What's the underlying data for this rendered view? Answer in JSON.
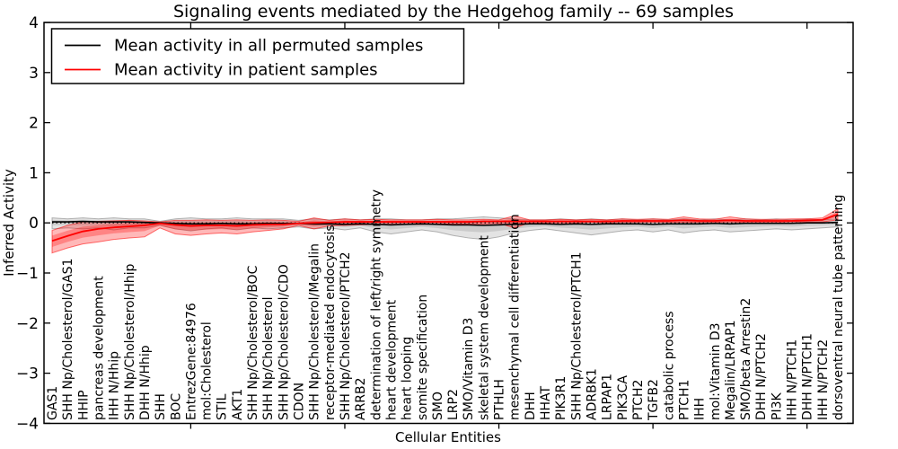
{
  "title": "Signaling events mediated by the Hedgehog family -- 69 samples",
  "axes": {
    "xlabel": "Cellular Entities",
    "ylabel": "Inferred Activity",
    "ylim": [
      -4,
      4
    ],
    "yticklabels": [
      "4",
      "3",
      "2",
      "1",
      "0",
      "−1",
      "−2",
      "−3",
      "−4"
    ],
    "yticks": [
      4,
      3,
      2,
      1,
      0,
      -1,
      -2,
      -3,
      -4
    ]
  },
  "legend": {
    "position": "upper left",
    "entries": [
      {
        "label": "Mean activity in all permuted samples",
        "color": "#000000"
      },
      {
        "label": "Mean activity in patient samples",
        "color": "#ff0000"
      }
    ]
  },
  "colors": {
    "patient": "#ff0000",
    "permuted": "#000000",
    "zero_line": "#000000",
    "patient_band": "rgba(255,0,0,0.28)",
    "patient_band_edge": "rgba(255,0,0,0.55)",
    "permuted_band": "rgba(90,90,90,0.17)",
    "permuted_band_edge": "rgba(120,120,120,0.55)"
  },
  "chart_data": {
    "type": "line",
    "title": "Signaling events mediated by the Hedgehog family -- 69 samples",
    "xlabel": "Cellular Entities",
    "ylabel": "Inferred Activity",
    "ylim": [
      -4,
      4
    ],
    "grid": false,
    "legend_position": "upper left",
    "zero_line": true,
    "categories": [
      "GAS1",
      "SHH Np/Cholesterol/GAS1",
      "HHIP",
      "pancreas development",
      "IHH N/Hhip",
      "SHH Np/Cholesterol/Hhip",
      "DHH N/Hhip",
      "SHH",
      "BOC",
      "EntrezGene:84976",
      "mol:Cholesterol",
      "STIL",
      "AKT1",
      "SHH Np/Cholesterol/BOC",
      "SHH Np/Cholesterol",
      "SHH Np/Cholesterol/CDO",
      "CDON",
      "SHH Np/Cholesterol/Megalin",
      "receptor-mediated endocytosis",
      "SHH Np/Cholesterol/PTCH2",
      "ARRB2",
      "determination of left/right symmetry",
      "heart development",
      "heart looping",
      "somite specification",
      "SMO",
      "LRP2",
      "SMO/Vitamin D3",
      "skeletal system development",
      "PTHLH",
      "mesenchymal cell differentiation",
      "DHH",
      "HHAT",
      "PIK3R1",
      "SHH Np/Cholesterol/PTCH1",
      "ADRBK1",
      "LRPAP1",
      "PIK3CA",
      "PTCH2",
      "TGFB2",
      "catabolic process",
      "PTCH1",
      "IHH",
      "mol:Vitamin D3",
      "Megalin/LRPAP1",
      "SMO/beta Arrestin2",
      "DHH N/PTCH2",
      "PI3K",
      "IHH N/PTCH1",
      "DHH N/PTCH1",
      "IHH N/PTCH2",
      "dorsoventral neural tube patterning"
    ],
    "series": [
      {
        "name": "Mean activity in all permuted samples",
        "color": "#000000",
        "values": [
          0.02,
          0.02,
          0.03,
          0.02,
          0.02,
          0.02,
          0.01,
          0.0,
          -0.01,
          -0.02,
          -0.02,
          -0.01,
          -0.02,
          -0.02,
          -0.01,
          -0.01,
          -0.01,
          -0.02,
          -0.02,
          -0.03,
          -0.02,
          -0.03,
          -0.04,
          -0.03,
          -0.02,
          -0.03,
          -0.04,
          -0.04,
          -0.05,
          -0.04,
          -0.03,
          -0.02,
          -0.02,
          -0.03,
          -0.02,
          -0.03,
          -0.02,
          -0.02,
          -0.02,
          -0.03,
          -0.02,
          -0.02,
          -0.02,
          -0.01,
          -0.02,
          -0.01,
          -0.01,
          -0.01,
          -0.01,
          0.0,
          0.0,
          0.01
        ]
      },
      {
        "name": "Mean activity in patient samples",
        "color": "#ff0000",
        "values": [
          -0.36,
          -0.26,
          -0.17,
          -0.12,
          -0.09,
          -0.07,
          -0.05,
          -0.01,
          -0.04,
          -0.06,
          -0.05,
          -0.05,
          -0.06,
          -0.04,
          -0.03,
          -0.03,
          -0.01,
          0.0,
          0.01,
          0.02,
          0.02,
          0.02,
          0.02,
          0.02,
          0.02,
          0.02,
          0.02,
          0.02,
          0.03,
          0.03,
          0.03,
          0.03,
          0.03,
          0.03,
          0.03,
          0.03,
          0.03,
          0.04,
          0.04,
          0.04,
          0.04,
          0.05,
          0.04,
          0.04,
          0.05,
          0.04,
          0.04,
          0.04,
          0.04,
          0.05,
          0.06,
          0.17
        ]
      }
    ],
    "bands": [
      {
        "name": "permuted sample range",
        "upper": [
          0.1,
          0.08,
          0.1,
          0.08,
          0.1,
          0.08,
          0.08,
          0.03,
          0.08,
          0.1,
          0.08,
          0.08,
          0.1,
          0.08,
          0.08,
          0.08,
          0.05,
          0.08,
          0.06,
          0.08,
          0.06,
          0.08,
          0.08,
          0.06,
          0.06,
          0.08,
          0.08,
          0.1,
          0.12,
          0.1,
          0.08,
          0.06,
          0.06,
          0.08,
          0.06,
          0.08,
          0.06,
          0.08,
          0.06,
          0.08,
          0.06,
          0.08,
          0.06,
          0.08,
          0.06,
          0.08,
          0.06,
          0.08,
          0.06,
          0.08,
          0.06,
          0.08
        ],
        "lower": [
          -0.12,
          -0.1,
          -0.12,
          -0.1,
          -0.14,
          -0.1,
          -0.1,
          -0.05,
          -0.12,
          -0.16,
          -0.12,
          -0.1,
          -0.14,
          -0.1,
          -0.12,
          -0.1,
          -0.08,
          -0.12,
          -0.1,
          -0.14,
          -0.1,
          -0.18,
          -0.22,
          -0.18,
          -0.14,
          -0.18,
          -0.25,
          -0.3,
          -0.33,
          -0.28,
          -0.2,
          -0.15,
          -0.12,
          -0.16,
          -0.2,
          -0.24,
          -0.2,
          -0.16,
          -0.14,
          -0.18,
          -0.14,
          -0.2,
          -0.16,
          -0.14,
          -0.18,
          -0.16,
          -0.14,
          -0.12,
          -0.14,
          -0.12,
          -0.1,
          -0.08
        ]
      },
      {
        "name": "patient sample range",
        "upper": [
          -0.15,
          -0.05,
          0.02,
          0.03,
          0.04,
          0.05,
          0.04,
          0.02,
          0.05,
          0.05,
          0.06,
          0.05,
          0.06,
          0.05,
          0.06,
          0.05,
          0.03,
          0.1,
          0.05,
          0.08,
          0.06,
          0.07,
          0.06,
          0.06,
          0.06,
          0.07,
          0.06,
          0.06,
          0.07,
          0.06,
          0.14,
          0.06,
          0.06,
          0.07,
          0.06,
          0.07,
          0.06,
          0.08,
          0.07,
          0.08,
          0.07,
          0.12,
          0.08,
          0.07,
          0.12,
          0.08,
          0.07,
          0.07,
          0.08,
          0.08,
          0.1,
          0.28
        ],
        "lower": [
          -0.6,
          -0.5,
          -0.42,
          -0.38,
          -0.33,
          -0.3,
          -0.28,
          -0.1,
          -0.22,
          -0.25,
          -0.22,
          -0.2,
          -0.22,
          -0.18,
          -0.15,
          -0.12,
          -0.05,
          -0.12,
          -0.06,
          -0.05,
          -0.04,
          -0.03,
          -0.03,
          -0.03,
          -0.03,
          -0.02,
          -0.02,
          -0.02,
          -0.02,
          -0.01,
          -0.1,
          0.0,
          0.0,
          0.0,
          0.0,
          0.01,
          0.0,
          0.01,
          0.01,
          0.01,
          0.01,
          0.01,
          0.01,
          0.01,
          0.02,
          0.01,
          0.01,
          0.01,
          0.02,
          0.02,
          0.02,
          0.06
        ]
      }
    ]
  }
}
